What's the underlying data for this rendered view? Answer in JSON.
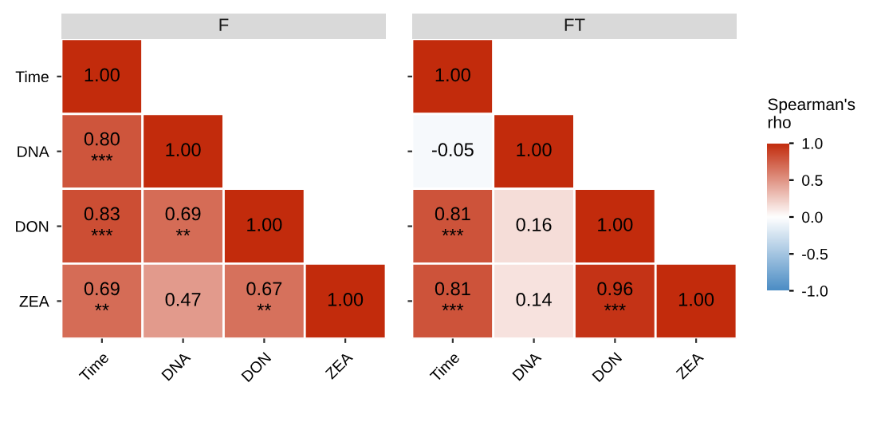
{
  "chart_data": [
    {
      "type": "heatmap",
      "title": "F",
      "categories": [
        "Time",
        "DNA",
        "DON",
        "ZEA"
      ],
      "y_categories": [
        "Time",
        "DNA",
        "DON",
        "ZEA"
      ],
      "cells": [
        [
          1.0,
          null,
          null,
          null
        ],
        [
          0.8,
          1.0,
          null,
          null
        ],
        [
          0.83,
          0.69,
          1.0,
          null
        ],
        [
          0.69,
          0.47,
          0.67,
          1.0
        ]
      ],
      "cell_labels": [
        [
          "1.00",
          null,
          null,
          null
        ],
        [
          "0.80\n***",
          "1.00",
          null,
          null
        ],
        [
          "0.83\n***",
          "0.69\n**",
          "1.00",
          null
        ],
        [
          "0.69\n**",
          "0.47",
          "0.67\n**",
          "1.00"
        ]
      ]
    },
    {
      "type": "heatmap",
      "title": "FT",
      "categories": [
        "Time",
        "DNA",
        "DON",
        "ZEA"
      ],
      "y_categories": [
        null,
        null,
        null,
        null
      ],
      "cells": [
        [
          1.0,
          null,
          null,
          null
        ],
        [
          -0.05,
          1.0,
          null,
          null
        ],
        [
          0.81,
          0.16,
          1.0,
          null
        ],
        [
          0.81,
          0.14,
          0.96,
          1.0
        ]
      ],
      "cell_labels": [
        [
          "1.00",
          null,
          null,
          null
        ],
        [
          "-0.05",
          "1.00",
          null,
          null
        ],
        [
          "0.81\n***",
          "0.16",
          "1.00",
          null
        ],
        [
          "0.81\n***",
          "0.14",
          "0.96\n***",
          "1.00"
        ]
      ],
      "clim": [
        -1,
        1
      ],
      "tick_labels": "x",
      "clabel": "Spearman's\nrho",
      "cticks": [
        {
          "value": -1,
          "label": "-1.0"
        },
        {
          "value": -0.5,
          "label": "-0.5"
        },
        {
          "value": 0,
          "label": "0.0"
        },
        {
          "value": 0.5,
          "label": "0.5"
        },
        {
          "value": 1,
          "label": "1.0"
        }
      ]
    }
  ]
}
